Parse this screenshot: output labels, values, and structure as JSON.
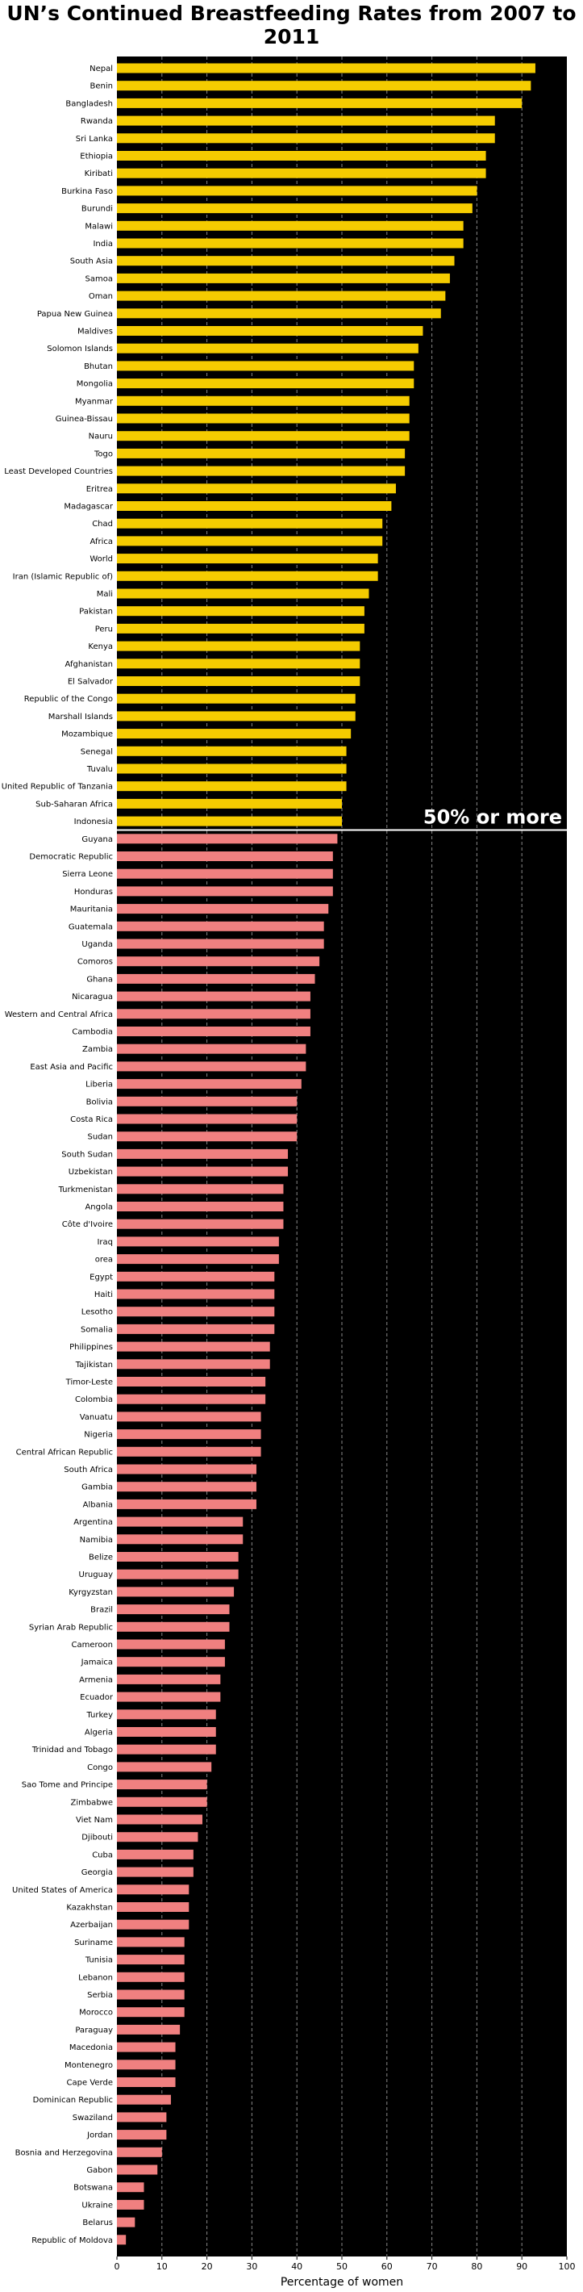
{
  "chart_data": {
    "type": "bar",
    "orientation": "horizontal",
    "title": "UN’s Continued Breastfeeding Rates from 2007 to 2011",
    "xlabel": "Percentage of women",
    "ylabel": "",
    "xlim": [
      0,
      100
    ],
    "xticks": [
      0,
      10,
      20,
      30,
      40,
      50,
      60,
      70,
      80,
      90,
      100
    ],
    "grid": "vertical dashed",
    "background_color": "#000000",
    "annotation": "50% or more",
    "threshold": 50,
    "colors": {
      "above": "#f5cc00",
      "below": "#f08080",
      "divider": "#ffffff",
      "grid": "#888888"
    },
    "categories": [
      "Nepal",
      "Benin",
      "Bangladesh",
      "Rwanda",
      "Sri Lanka",
      "Ethiopia",
      "Kiribati",
      "Burkina Faso",
      "Burundi",
      "Malawi",
      "India",
      "South Asia",
      "Samoa",
      "Oman",
      "Papua New Guinea",
      "Maldives",
      "Solomon Islands",
      "Bhutan",
      "Mongolia",
      "Myanmar",
      "Guinea-Bissau",
      "Nauru",
      "Togo",
      "Least Developed Countries",
      "Eritrea",
      "Madagascar",
      "Chad",
      "Africa",
      "World",
      "Iran (Islamic Republic of)",
      "Mali",
      "Pakistan",
      "Peru",
      "Kenya",
      "Afghanistan",
      "El Salvador",
      "Republic of the Congo",
      "Marshall Islands",
      "Mozambique",
      "Senegal",
      "Tuvalu",
      "United Republic of Tanzania",
      "Sub-Saharan Africa",
      "Indonesia",
      "Guyana",
      "Democratic Republic",
      "Sierra Leone",
      "Honduras",
      "Mauritania",
      "Guatemala",
      "Uganda",
      "Comoros",
      "Ghana",
      "Nicaragua",
      "Western and Central Africa",
      "Cambodia",
      "Zambia",
      "East Asia and Pacific",
      "Liberia",
      "Bolivia",
      "Costa Rica",
      "Sudan",
      "South Sudan",
      "Uzbekistan",
      "Turkmenistan",
      "Angola",
      "Côte d'Ivoire",
      "Iraq",
      "orea",
      "Egypt",
      "Haiti",
      "Lesotho",
      "Somalia",
      "Philippines",
      "Tajikistan",
      "Timor-Leste",
      "Colombia",
      "Vanuatu",
      "Nigeria",
      "Central African Republic",
      "South Africa",
      "Gambia",
      "Albania",
      "Argentina",
      "Namibia",
      "Belize",
      "Uruguay",
      "Kyrgyzstan",
      "Brazil",
      "Syrian Arab Republic",
      "Cameroon",
      "Jamaica",
      "Armenia",
      "Ecuador",
      "Turkey",
      "Algeria",
      "Trinidad and Tobago",
      "Congo",
      "Sao Tome and Principe",
      "Zimbabwe",
      "Viet Nam",
      "Djibouti",
      "Cuba",
      "Georgia",
      "United States of America",
      "Kazakhstan",
      "Azerbaijan",
      "Suriname",
      "Tunisia",
      "Lebanon",
      "Serbia",
      "Morocco",
      "Paraguay",
      "Macedonia",
      "Montenegro",
      "Cape Verde",
      "Dominican Republic",
      "Swaziland",
      "Jordan",
      "Bosnia and Herzegovina",
      "Gabon",
      "Botswana",
      "Ukraine",
      "Belarus",
      "Republic of Moldova"
    ],
    "values": [
      93,
      92,
      90,
      84,
      84,
      82,
      82,
      80,
      79,
      77,
      77,
      75,
      74,
      73,
      72,
      68,
      67,
      66,
      66,
      65,
      65,
      65,
      64,
      64,
      62,
      61,
      59,
      59,
      58,
      58,
      56,
      55,
      55,
      54,
      54,
      54,
      53,
      53,
      52,
      51,
      51,
      51,
      50,
      50,
      49,
      48,
      48,
      48,
      47,
      46,
      46,
      45,
      44,
      43,
      43,
      43,
      42,
      42,
      41,
      40,
      40,
      40,
      38,
      38,
      37,
      37,
      37,
      36,
      36,
      35,
      35,
      35,
      35,
      34,
      34,
      33,
      33,
      32,
      32,
      32,
      31,
      31,
      31,
      28,
      28,
      27,
      27,
      26,
      25,
      25,
      24,
      24,
      23,
      23,
      22,
      22,
      22,
      21,
      20,
      20,
      19,
      18,
      17,
      17,
      16,
      16,
      16,
      15,
      15,
      15,
      15,
      15,
      14,
      13,
      13,
      13,
      12,
      11,
      11,
      10,
      9,
      6,
      6,
      4,
      2
    ]
  }
}
